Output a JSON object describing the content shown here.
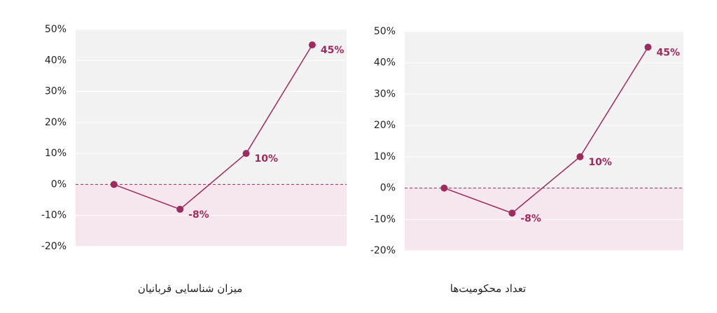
{
  "chart_data": [
    {
      "type": "line",
      "title": "میزان شناسایی قربانیان",
      "categories": [
        null,
        null,
        null,
        null
      ],
      "series": [
        {
          "color": "#9e2a5e",
          "values": [
            0,
            -8,
            10,
            45
          ],
          "value_labels": [
            null,
            "-8%",
            "10%",
            "45%"
          ]
        }
      ],
      "ylim": [
        -20,
        50
      ],
      "yticks": [
        {
          "value": -20,
          "label": "-20%"
        },
        {
          "value": -10,
          "label": "-10%"
        },
        {
          "value": 0,
          "label": "0%"
        },
        {
          "value": 10,
          "label": "10%"
        },
        {
          "value": 20,
          "label": "20%"
        },
        {
          "value": 30,
          "label": "30%"
        },
        {
          "value": 40,
          "label": "40%"
        },
        {
          "value": 50,
          "label": "50%"
        }
      ],
      "grid": true
    },
    {
      "type": "line",
      "title": "تعداد محکومیت‌ها",
      "categories": [
        null,
        null,
        null,
        null
      ],
      "series": [
        {
          "color": "#9e2a5e",
          "values": [
            0,
            -8,
            10,
            45
          ],
          "value_labels": [
            null,
            "-8%",
            "10%",
            "45%"
          ]
        }
      ],
      "ylim": [
        -20,
        50
      ],
      "yticks": [
        {
          "value": -20,
          "label": "-20%"
        },
        {
          "value": -10,
          "label": "-10%"
        },
        {
          "value": 0,
          "label": "0%"
        },
        {
          "value": 10,
          "label": "10%"
        },
        {
          "value": 20,
          "label": "20%"
        },
        {
          "value": 30,
          "label": "30%"
        },
        {
          "value": 40,
          "label": "40%"
        },
        {
          "value": 50,
          "label": "50%"
        }
      ],
      "grid": true
    }
  ]
}
